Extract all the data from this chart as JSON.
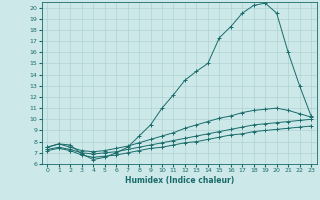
{
  "xlabel": "Humidex (Indice chaleur)",
  "bg_color": "#cce8e8",
  "grid_color": "#aacccc",
  "line_color": "#1a6b6b",
  "xlim": [
    -0.5,
    23.5
  ],
  "ylim": [
    6,
    20.5
  ],
  "yticks": [
    6,
    7,
    8,
    9,
    10,
    11,
    12,
    13,
    14,
    15,
    16,
    17,
    18,
    19,
    20
  ],
  "xticks": [
    0,
    1,
    2,
    3,
    4,
    5,
    6,
    7,
    8,
    9,
    10,
    11,
    12,
    13,
    14,
    15,
    16,
    17,
    18,
    19,
    20,
    21,
    22,
    23
  ],
  "curves": [
    {
      "x": [
        0,
        1,
        2,
        3,
        4,
        5,
        6,
        7,
        8,
        9,
        10,
        11,
        12,
        13,
        14,
        15,
        16,
        17,
        18,
        19,
        20,
        21,
        22,
        23
      ],
      "y": [
        7.5,
        7.8,
        7.7,
        6.9,
        6.4,
        6.6,
        7.0,
        7.5,
        8.5,
        9.5,
        11.0,
        12.2,
        13.5,
        14.3,
        15.0,
        17.3,
        18.3,
        19.5,
        20.2,
        20.4,
        19.5,
        16.0,
        13.0,
        10.3
      ]
    },
    {
      "x": [
        0,
        1,
        2,
        3,
        4,
        5,
        6,
        7,
        8,
        9,
        10,
        11,
        12,
        13,
        14,
        15,
        16,
        17,
        18,
        19,
        20,
        21,
        22,
        23
      ],
      "y": [
        7.5,
        7.8,
        7.5,
        7.2,
        7.1,
        7.2,
        7.4,
        7.6,
        7.9,
        8.2,
        8.5,
        8.8,
        9.2,
        9.5,
        9.8,
        10.1,
        10.3,
        10.6,
        10.8,
        10.9,
        11.0,
        10.8,
        10.5,
        10.2
      ]
    },
    {
      "x": [
        0,
        1,
        2,
        3,
        4,
        5,
        6,
        7,
        8,
        9,
        10,
        11,
        12,
        13,
        14,
        15,
        16,
        17,
        18,
        19,
        20,
        21,
        22,
        23
      ],
      "y": [
        7.3,
        7.5,
        7.3,
        7.0,
        6.9,
        7.0,
        7.1,
        7.3,
        7.5,
        7.7,
        7.9,
        8.1,
        8.3,
        8.5,
        8.7,
        8.9,
        9.1,
        9.3,
        9.5,
        9.6,
        9.7,
        9.8,
        9.9,
        10.0
      ]
    },
    {
      "x": [
        0,
        1,
        2,
        3,
        4,
        5,
        6,
        7,
        8,
        9,
        10,
        11,
        12,
        13,
        14,
        15,
        16,
        17,
        18,
        19,
        20,
        21,
        22,
        23
      ],
      "y": [
        7.2,
        7.4,
        7.2,
        6.8,
        6.6,
        6.7,
        6.8,
        7.0,
        7.2,
        7.4,
        7.5,
        7.7,
        7.9,
        8.0,
        8.2,
        8.4,
        8.6,
        8.7,
        8.9,
        9.0,
        9.1,
        9.2,
        9.3,
        9.4
      ]
    }
  ]
}
